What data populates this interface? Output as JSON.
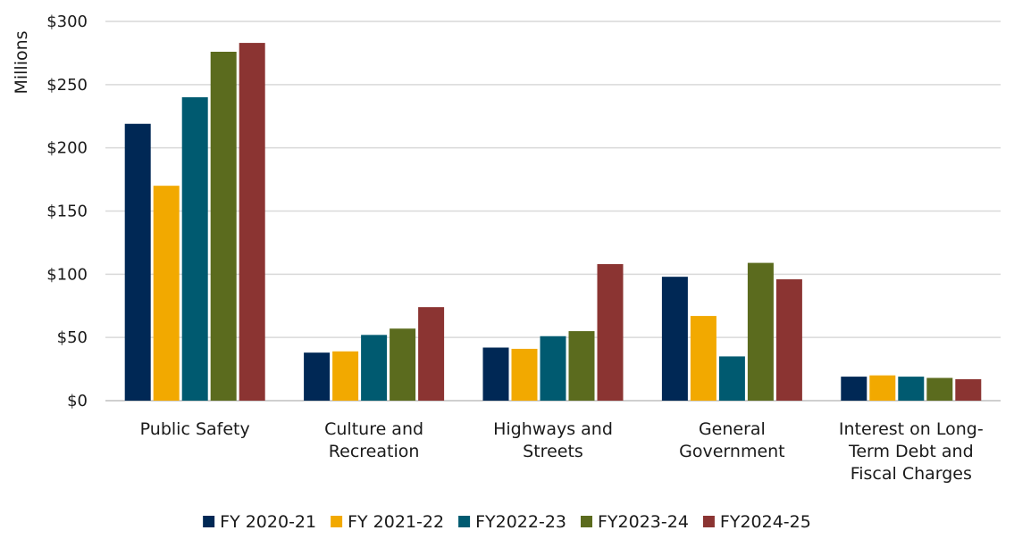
{
  "chart_data": {
    "type": "bar",
    "ylabel": "Millions",
    "ylim": [
      0,
      300
    ],
    "yticks": [
      0,
      50,
      100,
      150,
      200,
      250,
      300
    ],
    "ytick_labels": [
      "$0",
      "$50",
      "$100",
      "$150",
      "$200",
      "$250",
      "$300"
    ],
    "grid": true,
    "legend_position": "bottom",
    "categories": [
      [
        "Public Safety"
      ],
      [
        "Culture and",
        "Recreation"
      ],
      [
        "Highways and",
        "Streets"
      ],
      [
        "General",
        "Government"
      ],
      [
        "Interest on Long-",
        "Term Debt and",
        "Fiscal Charges"
      ]
    ],
    "series": [
      {
        "name": "FY 2020-21",
        "color": "#002855",
        "values": [
          219,
          38,
          42,
          98,
          19
        ]
      },
      {
        "name": "FY 2021-22",
        "color": "#f2a900",
        "values": [
          170,
          39,
          41,
          67,
          20
        ]
      },
      {
        "name": "FY2022-23",
        "color": "#005a70",
        "values": [
          240,
          52,
          51,
          35,
          19
        ]
      },
      {
        "name": "FY2023-24",
        "color": "#5b6b1e",
        "values": [
          276,
          57,
          55,
          109,
          18
        ]
      },
      {
        "name": "FY2024-25",
        "color": "#8b3432",
        "values": [
          283,
          74,
          108,
          96,
          17
        ]
      }
    ]
  }
}
